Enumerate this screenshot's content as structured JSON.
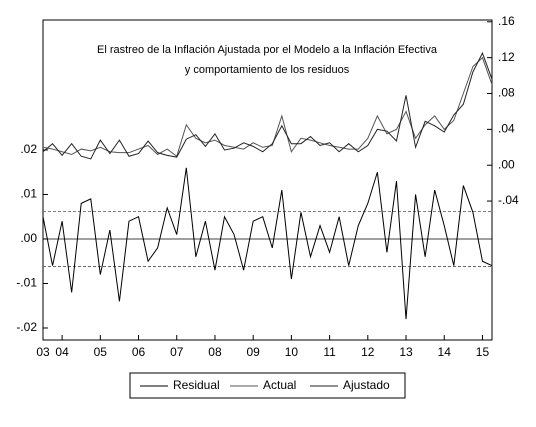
{
  "chart_data": {
    "type": "line",
    "title": [
      "El rastreo de la Inflación Ajustada por el Modelo a la Inflación Efectiva",
      "y comportamiento de los residuos"
    ],
    "categories": [
      "03",
      null,
      "04",
      null,
      null,
      null,
      "05",
      null,
      null,
      null,
      "06",
      null,
      null,
      null,
      "07",
      null,
      null,
      null,
      "08",
      null,
      null,
      null,
      "09",
      null,
      null,
      null,
      "10",
      null,
      null,
      null,
      "11",
      null,
      null,
      null,
      "12",
      null,
      null,
      null,
      "13",
      null,
      null,
      null,
      "14",
      null,
      null,
      null,
      "15",
      null
    ],
    "series": [
      {
        "name": "Residual",
        "color": "#000000",
        "axis": "y",
        "values": [
          0.005,
          -0.006,
          0.004,
          -0.012,
          0.008,
          0.009,
          -0.008,
          0.002,
          -0.014,
          0.004,
          0.005,
          -0.005,
          -0.002,
          0.007,
          0.001,
          0.016,
          -0.004,
          0.004,
          -0.007,
          0.005,
          0.001,
          -0.007,
          0.004,
          0.005,
          -0.002,
          0.011,
          -0.009,
          0.006,
          -0.004,
          0.003,
          -0.003,
          0.005,
          -0.006,
          0.003,
          0.008,
          0.015,
          -0.003,
          0.013,
          -0.018,
          0.01,
          -0.004,
          0.011,
          0.003,
          -0.006,
          0.012,
          0.006,
          -0.005,
          -0.006
        ]
      },
      {
        "name": "Actual",
        "color": "#555555",
        "axis": "y2",
        "values": [
          0.02,
          0.018,
          0.015,
          0.012,
          0.018,
          0.016,
          0.02,
          0.015,
          0.014,
          0.014,
          0.018,
          0.022,
          0.012,
          0.018,
          0.01,
          0.045,
          0.03,
          0.025,
          0.028,
          0.022,
          0.02,
          0.018,
          0.025,
          0.02,
          0.022,
          0.055,
          0.015,
          0.03,
          0.028,
          0.025,
          0.022,
          0.02,
          0.018,
          0.018,
          0.03,
          0.055,
          0.035,
          0.04,
          0.06,
          0.03,
          0.045,
          0.055,
          0.04,
          0.05,
          0.08,
          0.11,
          0.12,
          0.09
        ]
      },
      {
        "name": "Ajustado",
        "color": "#222222",
        "axis": "y2",
        "values": [
          0.015,
          0.024,
          0.011,
          0.024,
          0.01,
          0.007,
          0.028,
          0.013,
          0.028,
          0.01,
          0.013,
          0.027,
          0.014,
          0.011,
          0.009,
          0.029,
          0.034,
          0.021,
          0.035,
          0.017,
          0.019,
          0.025,
          0.021,
          0.015,
          0.024,
          0.044,
          0.024,
          0.024,
          0.032,
          0.022,
          0.025,
          0.015,
          0.024,
          0.015,
          0.022,
          0.04,
          0.038,
          0.027,
          0.078,
          0.02,
          0.049,
          0.044,
          0.037,
          0.056,
          0.068,
          0.104,
          0.125,
          0.096
        ]
      }
    ],
    "ylim": [
      -0.0227,
      0.0492
    ],
    "yticks": [
      {
        "value": 0.02,
        "label": ".02"
      },
      {
        "value": 0.01,
        "label": ".01"
      },
      {
        "value": 0,
        "label": ".00"
      },
      {
        "value": -0.01,
        "label": "-.01"
      },
      {
        "value": -0.02,
        "label": "-.02"
      }
    ],
    "y2lim": [
      -0.195,
      0.162
    ],
    "y2ticks": [
      {
        "value": 0.16,
        "label": ".16"
      },
      {
        "value": 0.12,
        "label": ".12"
      },
      {
        "value": 0.08,
        "label": ".08"
      },
      {
        "value": 0.04,
        "label": ".04"
      },
      {
        "value": 0,
        "label": ".00"
      },
      {
        "value": -0.04,
        "label": "-.04"
      }
    ],
    "reference_lines": [
      0.0062,
      -0.0062
    ],
    "zero_line": true,
    "legend": "bottom"
  }
}
